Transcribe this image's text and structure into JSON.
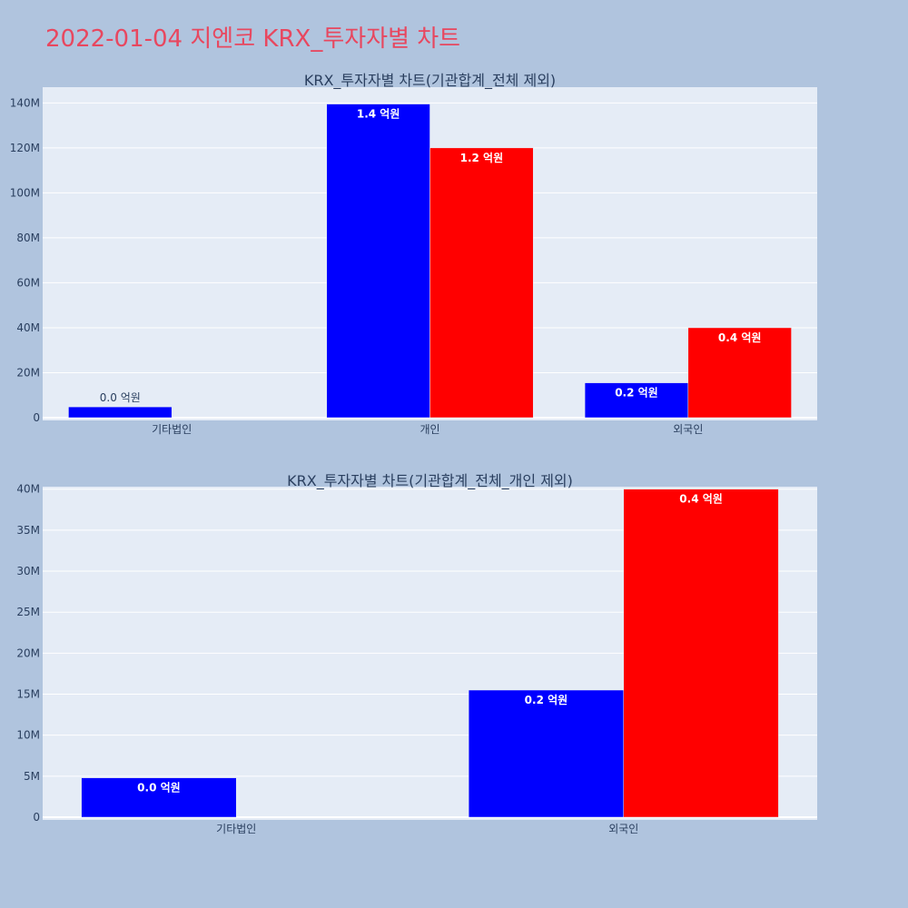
{
  "title": "2022-01-04 지엔코 KRX_투자자별 차트",
  "colors": {
    "page_bg": "#b0c4de",
    "plot_bg": "#e5ecf6",
    "title": "#e8475f",
    "series_1": "#0000ff",
    "series_2": "#ff0000"
  },
  "chart_data": [
    {
      "type": "bar",
      "title": "KRX_투자자별 차트(기관합계_전체 제외)",
      "categories": [
        "기타법인",
        "개인",
        "외국인"
      ],
      "series": [
        {
          "color": "#0000ff",
          "values": [
            4800000,
            139500000,
            15500000
          ],
          "labels": [
            "0.0 억원",
            "1.4 억원",
            "0.2 억원"
          ]
        },
        {
          "color": "#ff0000",
          "values": [
            0,
            120000000,
            40000000
          ],
          "labels": [
            "",
            "1.2 억원",
            "0.4 억원"
          ]
        }
      ],
      "yticks": [
        0,
        20000000,
        40000000,
        60000000,
        80000000,
        100000000,
        120000000,
        140000000
      ],
      "ytick_labels": [
        "0",
        "20M",
        "40M",
        "60M",
        "80M",
        "100M",
        "120M",
        "140M"
      ],
      "ylim": [
        0,
        147000000
      ],
      "grid": true
    },
    {
      "type": "bar",
      "title": "KRX_투자자별 차트(기관합계_전체_개인 제외)",
      "categories": [
        "기타법인",
        "외국인"
      ],
      "series": [
        {
          "color": "#0000ff",
          "values": [
            4800000,
            15500000
          ],
          "labels": [
            "0.0 억원",
            "0.2 억원"
          ]
        },
        {
          "color": "#ff0000",
          "values": [
            0,
            40000000
          ],
          "labels": [
            "",
            "0.4 억원"
          ]
        }
      ],
      "yticks": [
        0,
        5000000,
        10000000,
        15000000,
        20000000,
        25000000,
        30000000,
        35000000,
        40000000
      ],
      "ytick_labels": [
        "0",
        "5M",
        "10M",
        "15M",
        "20M",
        "25M",
        "30M",
        "35M",
        "40M"
      ],
      "ylim": [
        0,
        40300000
      ],
      "grid": true
    }
  ]
}
